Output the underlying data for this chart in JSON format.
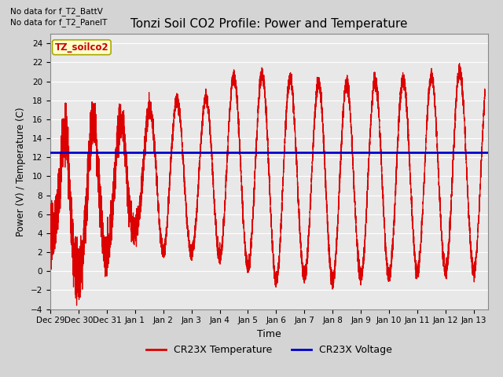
{
  "title": "Tonzi Soil CO2 Profile: Power and Temperature",
  "ylabel": "Power (V) / Temperature (C)",
  "xlabel": "Time",
  "ylim": [
    -4,
    25
  ],
  "yticks": [
    -4,
    -2,
    0,
    2,
    4,
    6,
    8,
    10,
    12,
    14,
    16,
    18,
    20,
    22,
    24
  ],
  "plot_bg": "#e8e8e8",
  "fig_bg": "#d4d4d4",
  "no_data_text1": "No data for f_T2_BattV",
  "no_data_text2": "No data for f_T2_PanelT",
  "legend_label_text": "TZ_soilco2",
  "legend_box_color": "#ffffcc",
  "legend_box_border": "#aaa800",
  "red_line_color": "#dd0000",
  "blue_line_color": "#0000cc",
  "temp_label": "CR23X Temperature",
  "volt_label": "CR23X Voltage",
  "voltage_value": 12.5,
  "xlim": [
    0,
    15.5
  ],
  "xtick_positions": [
    0,
    1,
    2,
    3,
    4,
    5,
    6,
    7,
    8,
    9,
    10,
    11,
    12,
    13,
    14,
    15
  ],
  "xtick_labels": [
    "Dec 29",
    "Dec 30",
    "Dec 31",
    "Jan 1",
    "Jan 2",
    "Jan 3",
    "Jan 4",
    "Jan 5",
    "Jan 6",
    "Jan 7",
    "Jan 8",
    "Jan 9",
    "Jan 10",
    "Jan 11",
    "Jan 12",
    "Jan 13"
  ]
}
